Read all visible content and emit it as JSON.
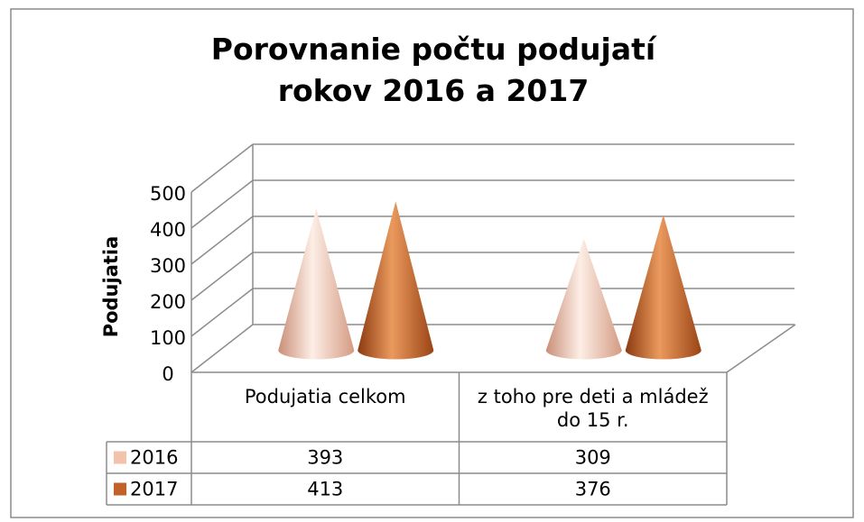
{
  "chart_data": {
    "type": "bar3d_cone",
    "title": "Porovnanie počtu podujatí rokov 2016 a 2017",
    "y_label": "Podujatia",
    "categories": [
      "Podujatia celkom",
      "z toho pre deti a mládež do 15 r."
    ],
    "series": [
      {
        "name": "2016",
        "color": "#f2c2ab",
        "values": [
          393,
          309
        ]
      },
      {
        "name": "2017",
        "color": "#c0622a",
        "values": [
          413,
          376
        ]
      }
    ],
    "ylim": [
      0,
      500
    ],
    "yticks": [
      0,
      100,
      200,
      300,
      400,
      500
    ],
    "grid": true,
    "data_table": true
  }
}
